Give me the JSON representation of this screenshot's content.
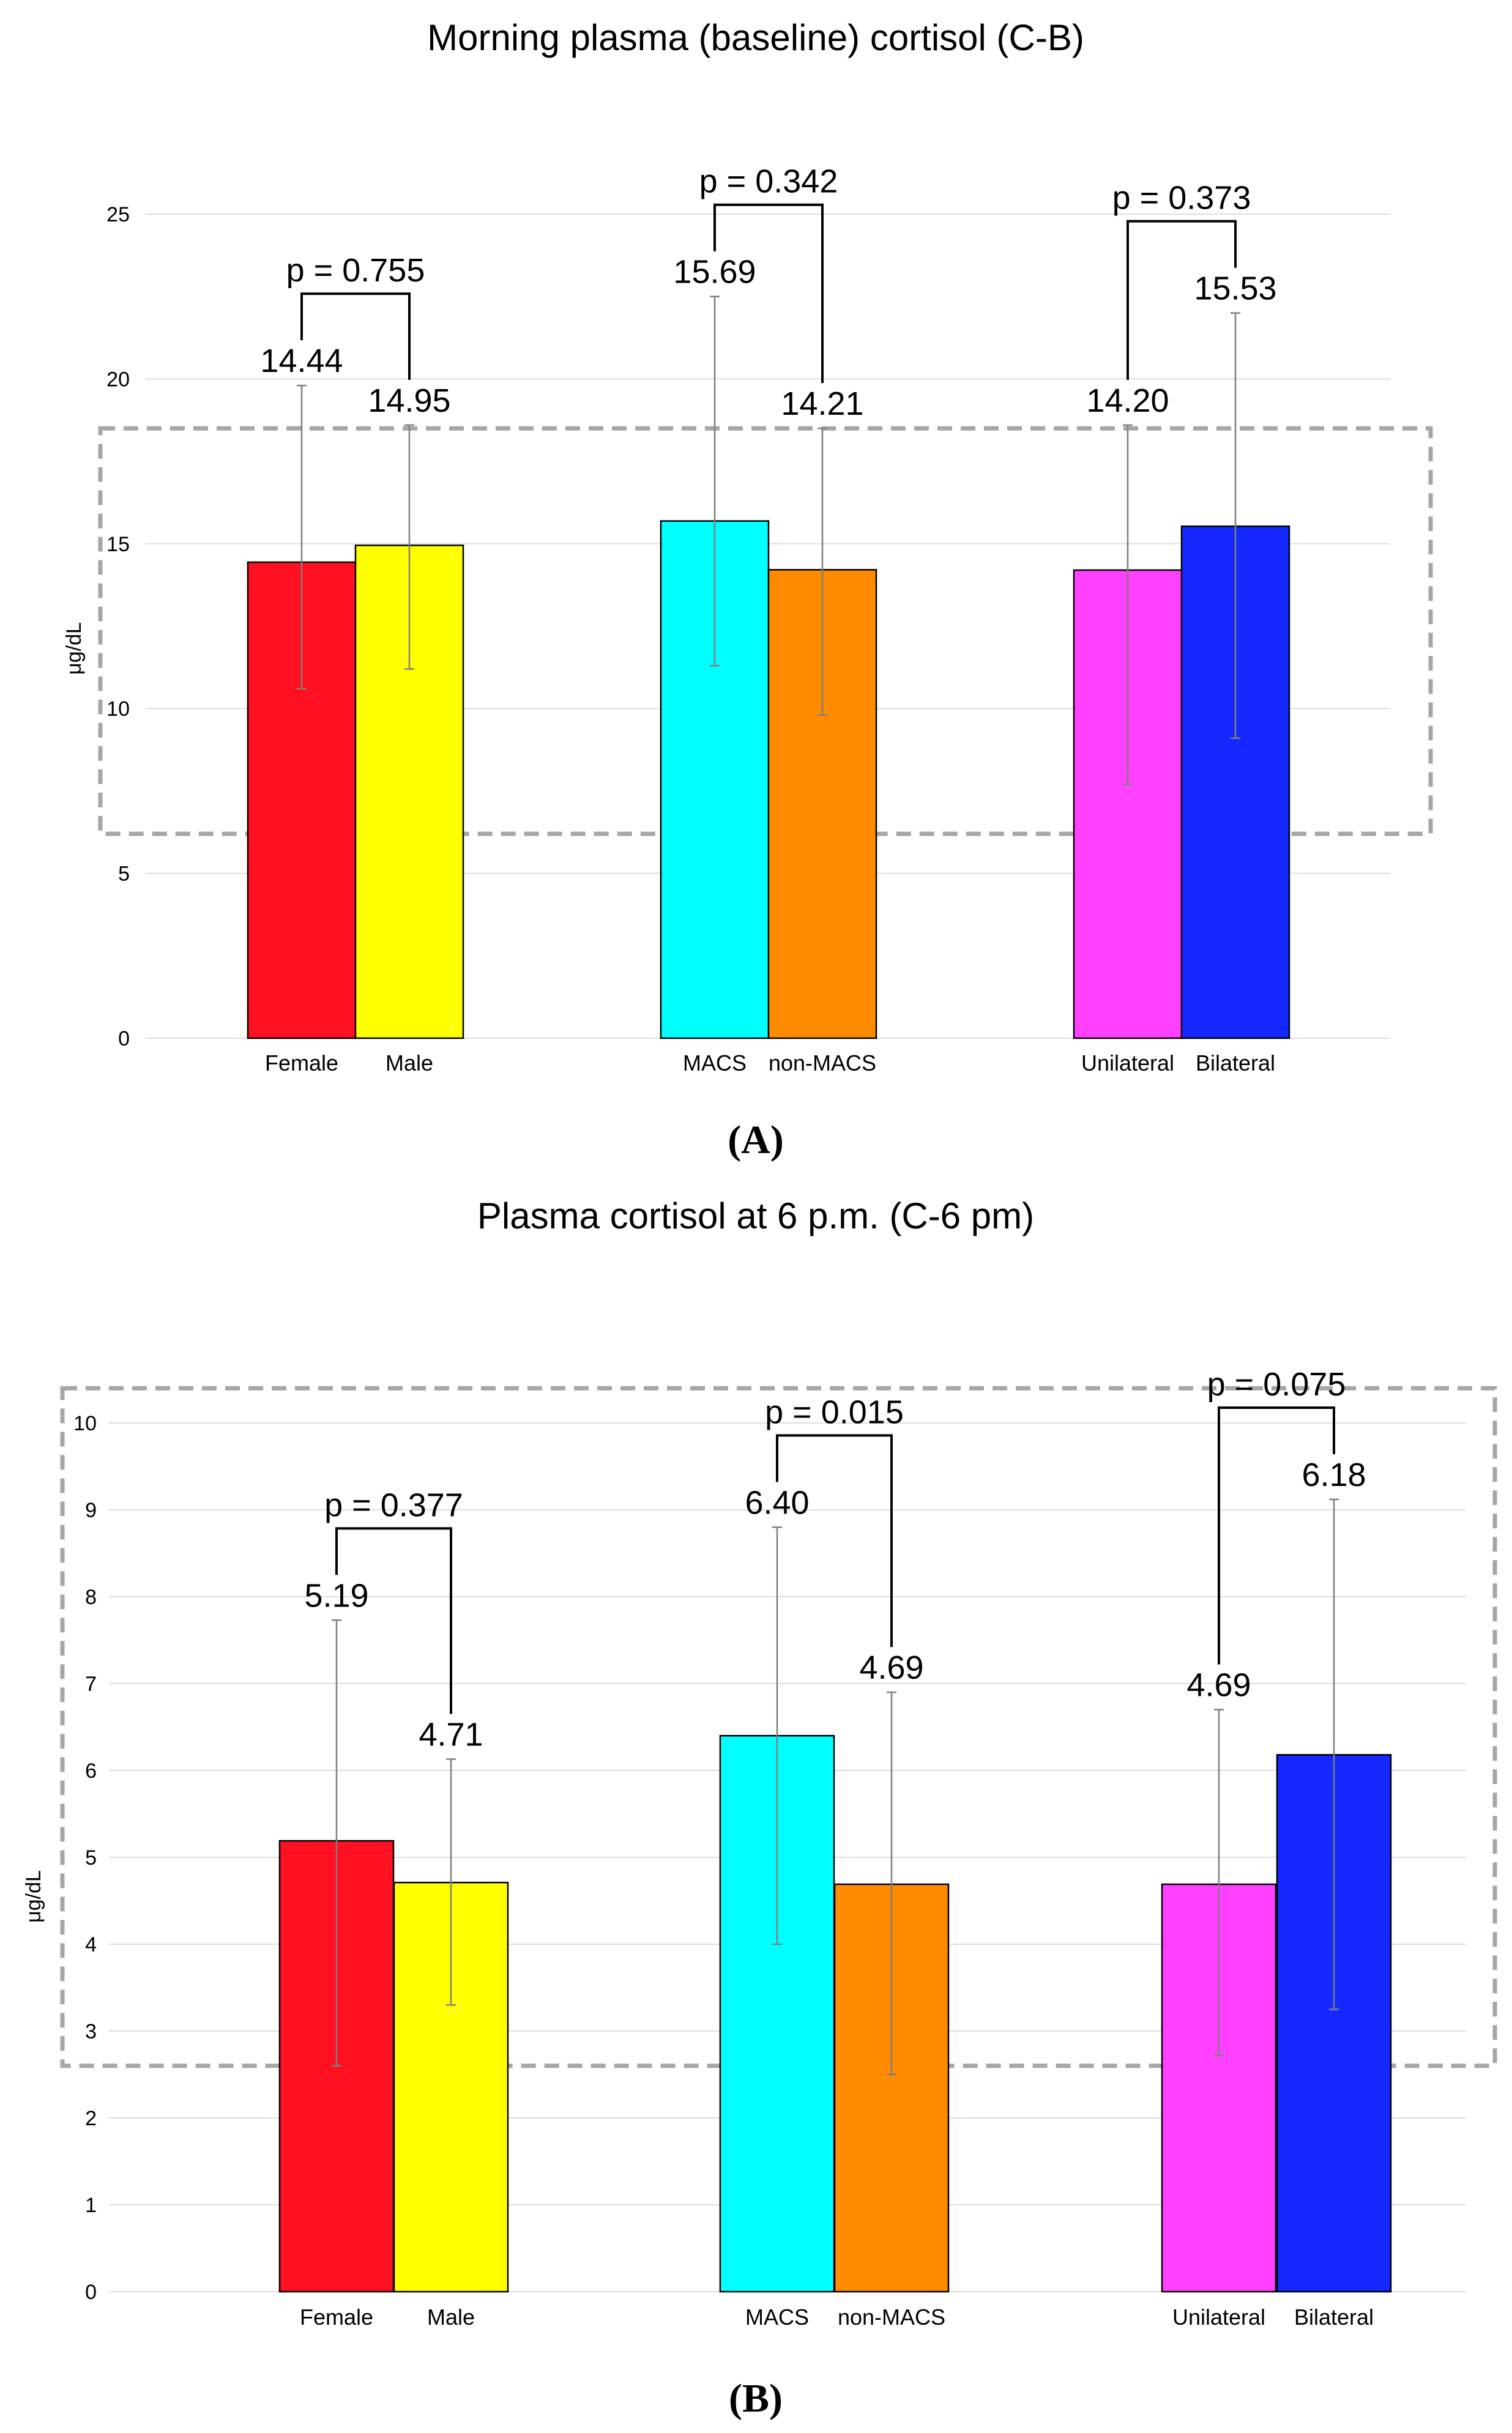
{
  "chart_data": [
    {
      "type": "bar",
      "panel": "(A)",
      "title": "Morning plasma (baseline) cortisol (C-B)",
      "ylabel": "μg/dL",
      "ylim": [
        0,
        25
      ],
      "yticks": [
        0,
        5,
        10,
        15,
        20,
        25
      ],
      "grid": true,
      "groups": [
        {
          "categories": [
            "Female",
            "Male"
          ],
          "values": [
            14.44,
            14.95
          ],
          "labels": [
            "14.44",
            "14.95"
          ],
          "error_low": [
            10.6,
            11.2
          ],
          "error_high": [
            19.8,
            18.6
          ],
          "colors": [
            "#ff1122",
            "#ffff00"
          ],
          "p_label": "p = 0.755"
        },
        {
          "categories": [
            "MACS",
            "non-MACS"
          ],
          "values": [
            15.69,
            14.21
          ],
          "labels": [
            "15.69",
            "14.21"
          ],
          "error_low": [
            11.3,
            9.8
          ],
          "error_high": [
            22.5,
            18.5
          ],
          "colors": [
            "#00ffff",
            "#ff8c00"
          ],
          "p_label": "p = 0.342"
        },
        {
          "categories": [
            "Unilateral",
            "Bilateral"
          ],
          "values": [
            14.2,
            15.53
          ],
          "labels": [
            "14.20",
            "15.53"
          ],
          "error_low": [
            7.7,
            9.1
          ],
          "error_high": [
            18.6,
            22.0
          ],
          "colors": [
            "#ff40ff",
            "#1428ff"
          ],
          "p_label": "p = 0.373"
        }
      ],
      "highlight_box_range": [
        6.2,
        18.5
      ]
    },
    {
      "type": "bar",
      "panel": "(B)",
      "title": "Plasma cortisol at 6 p.m. (C-6 pm)",
      "ylabel": "μg/dL",
      "ylim": [
        0,
        10
      ],
      "yticks": [
        0,
        1,
        2,
        3,
        4,
        5,
        6,
        7,
        8,
        9,
        10
      ],
      "grid": true,
      "groups": [
        {
          "categories": [
            "Female",
            "Male"
          ],
          "values": [
            5.19,
            4.71
          ],
          "labels": [
            "5.19",
            "4.71"
          ],
          "error_low": [
            2.6,
            3.3
          ],
          "error_high": [
            7.73,
            6.13
          ],
          "colors": [
            "#ff1122",
            "#ffff00"
          ],
          "p_label": "p = 0.377"
        },
        {
          "categories": [
            "MACS",
            "non-MACS"
          ],
          "values": [
            6.4,
            4.69
          ],
          "labels": [
            "6.40",
            "4.69"
          ],
          "error_low": [
            4.0,
            2.5
          ],
          "error_high": [
            8.8,
            6.9
          ],
          "colors": [
            "#00ffff",
            "#ff8c00"
          ],
          "p_label": "p = 0.015"
        },
        {
          "categories": [
            "Unilateral",
            "Bilateral"
          ],
          "values": [
            4.69,
            6.18
          ],
          "labels": [
            "4.69",
            "6.18"
          ],
          "error_low": [
            2.72,
            3.25
          ],
          "error_high": [
            6.7,
            9.12
          ],
          "colors": [
            "#ff40ff",
            "#1428ff"
          ],
          "p_label": "p = 0.075"
        }
      ],
      "highlight_box_range": [
        2.6,
        10.4
      ]
    }
  ]
}
